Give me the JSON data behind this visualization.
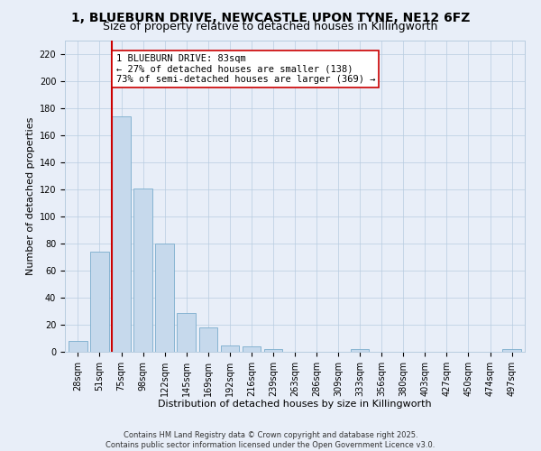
{
  "title_line1": "1, BLUEBURN DRIVE, NEWCASTLE UPON TYNE, NE12 6FZ",
  "title_line2": "Size of property relative to detached houses in Killingworth",
  "xlabel": "Distribution of detached houses by size in Killingworth",
  "ylabel": "Number of detached properties",
  "bar_color": "#c6d9ec",
  "bar_edge_color": "#7aadcc",
  "background_color": "#e8eef8",
  "grid_color": "#b8cce0",
  "vline_color": "#cc0000",
  "vline_x": 2,
  "annotation_line1": "1 BLUEBURN DRIVE: 83sqm",
  "annotation_line2": "← 27% of detached houses are smaller (138)",
  "annotation_line3": "73% of semi-detached houses are larger (369) →",
  "annotation_box_color": "#ffffff",
  "annotation_box_edge": "#cc0000",
  "categories": [
    "28sqm",
    "51sqm",
    "75sqm",
    "98sqm",
    "122sqm",
    "145sqm",
    "169sqm",
    "192sqm",
    "216sqm",
    "239sqm",
    "263sqm",
    "286sqm",
    "309sqm",
    "333sqm",
    "356sqm",
    "380sqm",
    "403sqm",
    "427sqm",
    "450sqm",
    "474sqm",
    "497sqm"
  ],
  "values": [
    8,
    74,
    174,
    121,
    80,
    29,
    18,
    5,
    4,
    2,
    0,
    0,
    0,
    2,
    0,
    0,
    0,
    0,
    0,
    0,
    2
  ],
  "ylim": [
    0,
    230
  ],
  "yticks": [
    0,
    20,
    40,
    60,
    80,
    100,
    120,
    140,
    160,
    180,
    200,
    220
  ],
  "footnote": "Contains HM Land Registry data © Crown copyright and database right 2025.\nContains public sector information licensed under the Open Government Licence v3.0.",
  "title_fontsize": 10,
  "subtitle_fontsize": 9,
  "axis_label_fontsize": 8,
  "tick_fontsize": 7,
  "annotation_fontsize": 7.5
}
